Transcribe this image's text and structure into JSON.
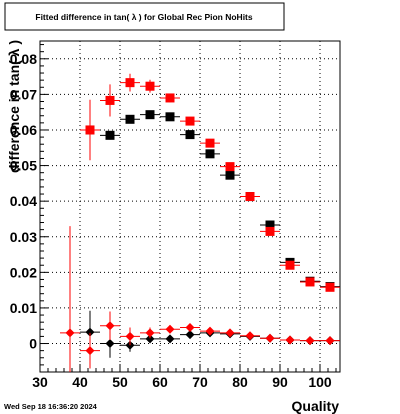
{
  "chart_data": {
    "type": "scatter",
    "title": "Fitted difference in tan( λ ) for Global Rec Pion NoHits",
    "xlabel": "Quality",
    "ylabel": "difference in tan( λ )",
    "xlim": [
      30,
      105
    ],
    "ylim": [
      -0.008,
      0.085
    ],
    "x_ticks": [
      30,
      40,
      50,
      60,
      70,
      80,
      90,
      100
    ],
    "x_tick_labels": [
      "30",
      "40",
      "50",
      "60",
      "70",
      "80",
      "90",
      "100"
    ],
    "y_ticks": [
      0,
      0.01,
      0.02,
      0.03,
      0.04,
      0.05,
      0.06,
      0.07,
      0.08
    ],
    "y_tick_labels": [
      "0",
      "0.01",
      "0.02",
      "0.03",
      "0.04",
      "0.05",
      "0.06",
      "0.07",
      "0.08"
    ],
    "grid": true,
    "timestamp": "Wed Sep 18 16:36:20 2024",
    "series": [
      {
        "marker": "square",
        "color": "#000000",
        "points": [
          {
            "x": 42.5,
            "y": 0.06,
            "err": 0.0015
          },
          {
            "x": 47.5,
            "y": 0.0585,
            "err": 0.0012
          },
          {
            "x": 52.5,
            "y": 0.063,
            "err": 0.001
          },
          {
            "x": 57.5,
            "y": 0.0643,
            "err": 0.0008
          },
          {
            "x": 62.5,
            "y": 0.0637,
            "err": 0.0007
          },
          {
            "x": 67.5,
            "y": 0.0587,
            "err": 0.0006
          },
          {
            "x": 72.5,
            "y": 0.0533,
            "err": 0.0005
          },
          {
            "x": 77.5,
            "y": 0.0473,
            "err": 0.0004
          },
          {
            "x": 82.5,
            "y": 0.0413,
            "err": 0.0004
          },
          {
            "x": 87.5,
            "y": 0.0333,
            "err": 0.0003
          },
          {
            "x": 92.5,
            "y": 0.0228,
            "err": 0.0003
          },
          {
            "x": 97.5,
            "y": 0.0175,
            "err": 0.0003
          },
          {
            "x": 102.5,
            "y": 0.016,
            "err": 0.0003
          }
        ]
      },
      {
        "marker": "square",
        "color": "#ff0000",
        "points": [
          {
            "x": 42.5,
            "y": 0.06,
            "err": 0.0085
          },
          {
            "x": 47.5,
            "y": 0.0683,
            "err": 0.0045
          },
          {
            "x": 52.5,
            "y": 0.0733,
            "err": 0.0025
          },
          {
            "x": 57.5,
            "y": 0.0723,
            "err": 0.0018
          },
          {
            "x": 62.5,
            "y": 0.069,
            "err": 0.0012
          },
          {
            "x": 67.5,
            "y": 0.0625,
            "err": 0.001
          },
          {
            "x": 72.5,
            "y": 0.0563,
            "err": 0.0008
          },
          {
            "x": 77.5,
            "y": 0.0497,
            "err": 0.0007
          },
          {
            "x": 82.5,
            "y": 0.0413,
            "err": 0.0005
          },
          {
            "x": 87.5,
            "y": 0.0315,
            "err": 0.0005
          },
          {
            "x": 92.5,
            "y": 0.022,
            "err": 0.0004
          },
          {
            "x": 97.5,
            "y": 0.0173,
            "err": 0.0004
          },
          {
            "x": 102.5,
            "y": 0.0158,
            "err": 0.0004
          }
        ]
      },
      {
        "marker": "diamond",
        "color": "#000000",
        "points": [
          {
            "x": 42.5,
            "y": 0.0032,
            "err": 0.006
          },
          {
            "x": 47.5,
            "y": 0.0,
            "err": 0.004
          },
          {
            "x": 52.5,
            "y": -0.0005,
            "err": 0.0018
          },
          {
            "x": 57.5,
            "y": 0.0013,
            "err": 0.0012
          },
          {
            "x": 62.5,
            "y": 0.0013,
            "err": 0.0009
          },
          {
            "x": 67.5,
            "y": 0.0025,
            "err": 0.0008
          },
          {
            "x": 72.5,
            "y": 0.003,
            "err": 0.0007
          },
          {
            "x": 77.5,
            "y": 0.0027,
            "err": 0.0006
          },
          {
            "x": 82.5,
            "y": 0.002,
            "err": 0.0005
          },
          {
            "x": 87.5,
            "y": 0.0015,
            "err": 0.0005
          },
          {
            "x": 92.5,
            "y": 0.001,
            "err": 0.0004
          },
          {
            "x": 97.5,
            "y": 0.0008,
            "err": 0.0004
          },
          {
            "x": 102.5,
            "y": 0.0008,
            "err": 0.0004
          }
        ]
      },
      {
        "marker": "diamond",
        "color": "#ff0000",
        "points": [
          {
            "x": 37.5,
            "y": 0.003,
            "err": 0.03
          },
          {
            "x": 42.5,
            "y": -0.002,
            "err": 0.005
          },
          {
            "x": 47.5,
            "y": 0.005,
            "err": 0.004
          },
          {
            "x": 52.5,
            "y": 0.002,
            "err": 0.0025
          },
          {
            "x": 57.5,
            "y": 0.003,
            "err": 0.0015
          },
          {
            "x": 62.5,
            "y": 0.004,
            "err": 0.0012
          },
          {
            "x": 67.5,
            "y": 0.0045,
            "err": 0.001
          },
          {
            "x": 72.5,
            "y": 0.0035,
            "err": 0.0008
          },
          {
            "x": 77.5,
            "y": 0.003,
            "err": 0.0007
          },
          {
            "x": 82.5,
            "y": 0.0022,
            "err": 0.0006
          },
          {
            "x": 87.5,
            "y": 0.0015,
            "err": 0.0005
          },
          {
            "x": 92.5,
            "y": 0.001,
            "err": 0.0004
          },
          {
            "x": 97.5,
            "y": 0.0008,
            "err": 0.0004
          },
          {
            "x": 102.5,
            "y": 0.0008,
            "err": 0.0004
          }
        ]
      }
    ]
  }
}
